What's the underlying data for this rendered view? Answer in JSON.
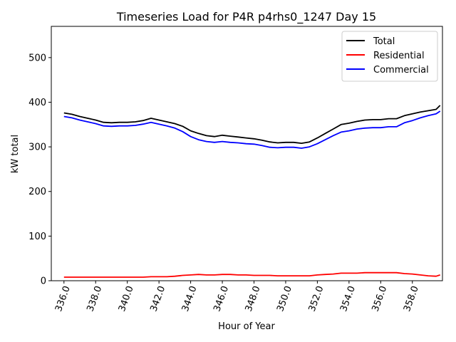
{
  "chart_data": {
    "type": "line",
    "title": "Timeseries Load for P4R p4rhs0_1247  Day 15",
    "xlabel": "Hour of Year",
    "ylabel": "kW total",
    "xlim": [
      335.2,
      359.9
    ],
    "ylim": [
      0,
      570
    ],
    "xticks": [
      336,
      338,
      340,
      342,
      344,
      346,
      348,
      350,
      352,
      354,
      356,
      358
    ],
    "xtick_labels": [
      "336.0",
      "338.0",
      "340.0",
      "342.0",
      "344.0",
      "346.0",
      "348.0",
      "350.0",
      "352.0",
      "354.0",
      "356.0",
      "358.0"
    ],
    "yticks": [
      0,
      100,
      200,
      300,
      400,
      500
    ],
    "ytick_labels": [
      "0",
      "100",
      "200",
      "300",
      "400",
      "500"
    ],
    "legend_position": "top-right",
    "x": [
      336.0,
      336.5,
      337.0,
      337.5,
      338.0,
      338.5,
      339.0,
      339.5,
      340.0,
      340.5,
      341.0,
      341.5,
      342.0,
      342.5,
      343.0,
      343.5,
      344.0,
      344.5,
      345.0,
      345.5,
      346.0,
      346.5,
      347.0,
      347.5,
      348.0,
      348.5,
      349.0,
      349.5,
      350.0,
      350.5,
      351.0,
      351.5,
      352.0,
      352.5,
      353.0,
      353.5,
      354.0,
      354.5,
      355.0,
      355.5,
      356.0,
      356.5,
      357.0,
      357.5,
      358.0,
      358.5,
      359.0,
      359.5,
      359.75
    ],
    "series": [
      {
        "name": "Total",
        "color": "#000000",
        "values": [
          376,
          373,
          368,
          364,
          360,
          355,
          354,
          355,
          355,
          356,
          359,
          364,
          360,
          356,
          352,
          346,
          336,
          330,
          325,
          323,
          326,
          324,
          322,
          320,
          318,
          315,
          311,
          309,
          310,
          310,
          308,
          311,
          320,
          330,
          340,
          350,
          353,
          357,
          360,
          361,
          361,
          363,
          363,
          370,
          374,
          378,
          381,
          384,
          393
        ]
      },
      {
        "name": "Residential",
        "color": "#ff0000",
        "values": [
          8,
          8,
          8,
          8,
          8,
          8,
          8,
          8,
          8,
          8,
          8,
          9,
          9,
          9,
          10,
          12,
          13,
          14,
          13,
          13,
          14,
          14,
          13,
          13,
          12,
          12,
          12,
          11,
          11,
          11,
          11,
          11,
          13,
          14,
          15,
          17,
          17,
          17,
          18,
          18,
          18,
          18,
          18,
          16,
          15,
          13,
          11,
          10,
          13
        ]
      },
      {
        "name": "Commercial",
        "color": "#0000ff",
        "values": [
          368,
          365,
          360,
          356,
          352,
          347,
          346,
          347,
          347,
          348,
          351,
          355,
          351,
          347,
          342,
          334,
          323,
          316,
          312,
          310,
          312,
          310,
          309,
          307,
          306,
          303,
          299,
          298,
          299,
          299,
          297,
          300,
          307,
          316,
          325,
          333,
          336,
          340,
          342,
          343,
          343,
          345,
          345,
          354,
          359,
          365,
          370,
          374,
          380
        ]
      }
    ]
  }
}
